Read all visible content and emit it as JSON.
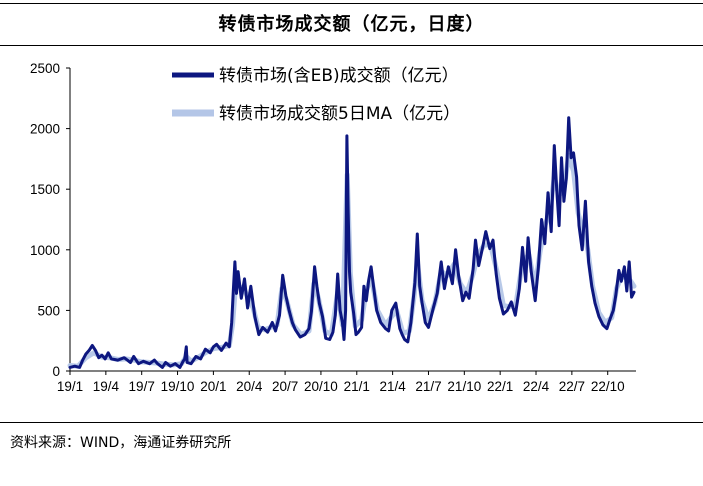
{
  "chart_data": {
    "type": "line",
    "title": "转债市场成交额（亿元，日度）",
    "source": "资料来源：WIND，海通证券研究所",
    "y_ticks": [
      0,
      500,
      1000,
      1500,
      2000,
      2500
    ],
    "ylim": [
      0,
      2500
    ],
    "x_ticks": [
      "19/1",
      "19/4",
      "19/7",
      "19/10",
      "20/1",
      "20/4",
      "20/7",
      "20/10",
      "21/1",
      "21/4",
      "21/7",
      "21/10",
      "22/1",
      "22/4",
      "22/7",
      "22/10"
    ],
    "x_tick_labels": [
      "19/1",
      "19/4",
      "19/7",
      "19/10",
      "20/1",
      "20/4",
      "20/7",
      "20/10",
      "21/1",
      "21/4",
      "21/7",
      "21/10",
      "22/1",
      "22/4",
      "22/7",
      "22/10"
    ],
    "series": [
      {
        "name": "转债市场(含EB)成交额（亿元）",
        "color": "#0d1780",
        "points": [
          [
            0,
            30
          ],
          [
            0.3,
            40
          ],
          [
            0.6,
            30
          ],
          [
            0.8,
            90
          ],
          [
            1.0,
            140
          ],
          [
            1.2,
            170
          ],
          [
            1.4,
            210
          ],
          [
            1.6,
            170
          ],
          [
            1.8,
            110
          ],
          [
            2.0,
            130
          ],
          [
            2.2,
            100
          ],
          [
            2.4,
            150
          ],
          [
            2.6,
            100
          ],
          [
            3.0,
            90
          ],
          [
            3.4,
            110
          ],
          [
            3.8,
            70
          ],
          [
            4.0,
            120
          ],
          [
            4.3,
            60
          ],
          [
            4.6,
            80
          ],
          [
            5.0,
            60
          ],
          [
            5.3,
            90
          ],
          [
            5.5,
            60
          ],
          [
            5.8,
            30
          ],
          [
            6.0,
            70
          ],
          [
            6.3,
            40
          ],
          [
            6.6,
            60
          ],
          [
            6.9,
            30
          ],
          [
            7.1,
            80
          ],
          [
            7.2,
            100
          ],
          [
            7.3,
            200
          ],
          [
            7.35,
            70
          ],
          [
            7.6,
            60
          ],
          [
            7.9,
            120
          ],
          [
            8.2,
            100
          ],
          [
            8.5,
            180
          ],
          [
            8.8,
            150
          ],
          [
            9.0,
            200
          ],
          [
            9.2,
            220
          ],
          [
            9.5,
            170
          ],
          [
            9.8,
            230
          ],
          [
            10.0,
            200
          ],
          [
            10.15,
            400
          ],
          [
            10.25,
            660
          ],
          [
            10.35,
            900
          ],
          [
            10.45,
            640
          ],
          [
            10.55,
            820
          ],
          [
            10.75,
            600
          ],
          [
            10.95,
            760
          ],
          [
            11.15,
            520
          ],
          [
            11.35,
            700
          ],
          [
            11.6,
            450
          ],
          [
            11.85,
            300
          ],
          [
            12.1,
            360
          ],
          [
            12.4,
            320
          ],
          [
            12.7,
            400
          ],
          [
            12.9,
            330
          ],
          [
            13.15,
            460
          ],
          [
            13.35,
            790
          ],
          [
            13.55,
            620
          ],
          [
            13.75,
            500
          ],
          [
            13.95,
            400
          ],
          [
            14.15,
            340
          ],
          [
            14.45,
            280
          ],
          [
            14.75,
            300
          ],
          [
            15.0,
            350
          ],
          [
            15.15,
            490
          ],
          [
            15.35,
            860
          ],
          [
            15.5,
            700
          ],
          [
            15.65,
            560
          ],
          [
            15.85,
            450
          ],
          [
            16.05,
            270
          ],
          [
            16.3,
            260
          ],
          [
            16.5,
            320
          ],
          [
            16.65,
            460
          ],
          [
            16.8,
            800
          ],
          [
            16.95,
            500
          ],
          [
            17.1,
            400
          ],
          [
            17.2,
            260
          ],
          [
            17.3,
            500
          ],
          [
            17.38,
            1940
          ],
          [
            17.46,
            1300
          ],
          [
            17.54,
            820
          ],
          [
            17.62,
            650
          ],
          [
            17.8,
            480
          ],
          [
            17.95,
            300
          ],
          [
            18.1,
            320
          ],
          [
            18.3,
            360
          ],
          [
            18.45,
            700
          ],
          [
            18.6,
            580
          ],
          [
            18.75,
            750
          ],
          [
            18.9,
            860
          ],
          [
            19.05,
            700
          ],
          [
            19.25,
            500
          ],
          [
            19.5,
            400
          ],
          [
            19.8,
            350
          ],
          [
            20.0,
            330
          ],
          [
            20.2,
            500
          ],
          [
            20.45,
            560
          ],
          [
            20.7,
            350
          ],
          [
            20.85,
            300
          ],
          [
            21.0,
            260
          ],
          [
            21.2,
            240
          ],
          [
            21.4,
            400
          ],
          [
            21.65,
            730
          ],
          [
            21.8,
            1130
          ],
          [
            21.95,
            700
          ],
          [
            22.1,
            560
          ],
          [
            22.3,
            400
          ],
          [
            22.5,
            360
          ],
          [
            22.8,
            520
          ],
          [
            23.05,
            640
          ],
          [
            23.3,
            900
          ],
          [
            23.5,
            680
          ],
          [
            23.75,
            860
          ],
          [
            24.0,
            720
          ],
          [
            24.2,
            1000
          ],
          [
            24.4,
            780
          ],
          [
            24.65,
            580
          ],
          [
            24.85,
            650
          ],
          [
            25.05,
            600
          ],
          [
            25.3,
            840
          ],
          [
            25.45,
            1080
          ],
          [
            25.65,
            870
          ],
          [
            25.9,
            1020
          ],
          [
            26.1,
            1150
          ],
          [
            26.35,
            1010
          ],
          [
            26.55,
            1080
          ],
          [
            26.75,
            800
          ],
          [
            26.95,
            600
          ],
          [
            27.2,
            470
          ],
          [
            27.45,
            500
          ],
          [
            27.7,
            570
          ],
          [
            27.95,
            460
          ],
          [
            28.2,
            680
          ],
          [
            28.4,
            1020
          ],
          [
            28.6,
            740
          ],
          [
            28.75,
            1100
          ],
          [
            28.95,
            820
          ],
          [
            29.2,
            580
          ],
          [
            29.4,
            860
          ],
          [
            29.6,
            1250
          ],
          [
            29.8,
            1050
          ],
          [
            30.0,
            1470
          ],
          [
            30.2,
            1150
          ],
          [
            30.4,
            1860
          ],
          [
            30.55,
            1500
          ],
          [
            30.7,
            1200
          ],
          [
            30.85,
            1760
          ],
          [
            31.0,
            1400
          ],
          [
            31.15,
            1590
          ],
          [
            31.3,
            2090
          ],
          [
            31.45,
            1760
          ],
          [
            31.6,
            1800
          ],
          [
            31.8,
            1600
          ],
          [
            31.95,
            1200
          ],
          [
            32.15,
            1000
          ],
          [
            32.35,
            1400
          ],
          [
            32.55,
            900
          ],
          [
            32.75,
            700
          ],
          [
            32.95,
            560
          ],
          [
            33.2,
            450
          ],
          [
            33.45,
            380
          ],
          [
            33.7,
            350
          ],
          [
            33.9,
            430
          ],
          [
            34.1,
            500
          ],
          [
            34.25,
            620
          ],
          [
            34.45,
            830
          ],
          [
            34.6,
            740
          ],
          [
            34.8,
            860
          ],
          [
            34.95,
            660
          ],
          [
            35.1,
            900
          ],
          [
            35.25,
            610
          ],
          [
            35.4,
            650
          ]
        ]
      },
      {
        "name": "转债市场成交额5日MA（亿元）",
        "color": "#b4c6e7",
        "points": [
          [
            0,
            45
          ],
          [
            0.5,
            40
          ],
          [
            1.0,
            110
          ],
          [
            1.5,
            150
          ],
          [
            2.0,
            115
          ],
          [
            2.5,
            110
          ],
          [
            3.0,
            95
          ],
          [
            3.5,
            100
          ],
          [
            4.0,
            90
          ],
          [
            4.5,
            75
          ],
          [
            5.0,
            70
          ],
          [
            5.5,
            65
          ],
          [
            6.0,
            55
          ],
          [
            6.5,
            50
          ],
          [
            7.0,
            60
          ],
          [
            7.3,
            120
          ],
          [
            7.6,
            80
          ],
          [
            8.0,
            110
          ],
          [
            8.5,
            150
          ],
          [
            9.0,
            185
          ],
          [
            9.5,
            195
          ],
          [
            10.0,
            210
          ],
          [
            10.2,
            380
          ],
          [
            10.4,
            720
          ],
          [
            10.6,
            700
          ],
          [
            10.9,
            680
          ],
          [
            11.2,
            600
          ],
          [
            11.5,
            520
          ],
          [
            11.8,
            360
          ],
          [
            12.2,
            340
          ],
          [
            12.6,
            360
          ],
          [
            13.0,
            380
          ],
          [
            13.3,
            680
          ],
          [
            13.6,
            580
          ],
          [
            14.0,
            380
          ],
          [
            14.5,
            300
          ],
          [
            15.0,
            330
          ],
          [
            15.3,
            720
          ],
          [
            15.6,
            600
          ],
          [
            16.0,
            330
          ],
          [
            16.4,
            300
          ],
          [
            16.8,
            650
          ],
          [
            17.1,
            380
          ],
          [
            17.4,
            1620
          ],
          [
            17.6,
            800
          ],
          [
            17.9,
            370
          ],
          [
            18.3,
            420
          ],
          [
            18.6,
            660
          ],
          [
            18.9,
            780
          ],
          [
            19.3,
            500
          ],
          [
            19.8,
            380
          ],
          [
            20.2,
            450
          ],
          [
            20.5,
            500
          ],
          [
            20.9,
            310
          ],
          [
            21.3,
            330
          ],
          [
            21.6,
            620
          ],
          [
            21.8,
            900
          ],
          [
            22.1,
            580
          ],
          [
            22.5,
            420
          ],
          [
            22.9,
            560
          ],
          [
            23.3,
            820
          ],
          [
            23.7,
            790
          ],
          [
            24.1,
            880
          ],
          [
            24.5,
            720
          ],
          [
            24.9,
            640
          ],
          [
            25.3,
            800
          ],
          [
            25.6,
            960
          ],
          [
            26.0,
            1040
          ],
          [
            26.4,
            1040
          ],
          [
            26.8,
            820
          ],
          [
            27.2,
            540
          ],
          [
            27.6,
            530
          ],
          [
            28.0,
            560
          ],
          [
            28.4,
            900
          ],
          [
            28.8,
            960
          ],
          [
            29.2,
            700
          ],
          [
            29.5,
            980
          ],
          [
            29.8,
            1200
          ],
          [
            30.1,
            1300
          ],
          [
            30.4,
            1600
          ],
          [
            30.7,
            1450
          ],
          [
            31.0,
            1500
          ],
          [
            31.3,
            1780
          ],
          [
            31.6,
            1650
          ],
          [
            31.9,
            1300
          ],
          [
            32.2,
            1150
          ],
          [
            32.5,
            1000
          ],
          [
            32.8,
            700
          ],
          [
            33.2,
            480
          ],
          [
            33.6,
            400
          ],
          [
            34.0,
            440
          ],
          [
            34.3,
            680
          ],
          [
            34.6,
            780
          ],
          [
            34.9,
            770
          ],
          [
            35.2,
            740
          ],
          [
            35.4,
            700
          ]
        ]
      }
    ]
  },
  "legend": [
    {
      "label": "转债市场(含EB)成交额（亿元）",
      "color": "#0d1780"
    },
    {
      "label": "转债市场成交额5日MA（亿元）",
      "color": "#b4c6e7"
    }
  ]
}
